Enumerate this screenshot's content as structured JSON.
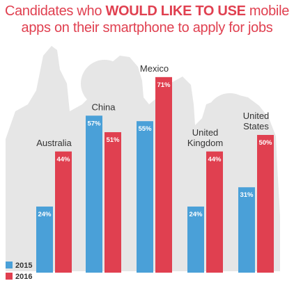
{
  "title": {
    "part1": "Candidates who ",
    "part2": "WOULD LIKE TO USE",
    "part3": " mobile",
    "line2": "apps on their smartphone to apply for jobs"
  },
  "colors": {
    "title": "#e04050",
    "series_2015": "#4aa0d8",
    "series_2016": "#e04050",
    "silhouette": "#e6e6e6"
  },
  "chart_data": {
    "type": "bar",
    "categories": [
      "Australia",
      "China",
      "Mexico",
      "United Kingdom",
      "United States"
    ],
    "category_labels": [
      [
        "Australia"
      ],
      [
        "China"
      ],
      [
        "Mexico"
      ],
      [
        "United",
        "Kingdom"
      ],
      [
        "United",
        "States"
      ]
    ],
    "series": [
      {
        "name": "2015",
        "values": [
          24,
          57,
          55,
          24,
          31
        ],
        "value_labels": [
          "24%",
          "57%",
          "55%",
          "24%",
          "31%"
        ]
      },
      {
        "name": "2016",
        "values": [
          44,
          51,
          71,
          44,
          50
        ],
        "value_labels": [
          "44%",
          "51%",
          "71%",
          "44%",
          "50%"
        ]
      }
    ],
    "ylim": [
      0,
      100
    ],
    "legend": [
      "2015",
      "2016"
    ],
    "legend_position": "bottom-left",
    "grid": false
  }
}
